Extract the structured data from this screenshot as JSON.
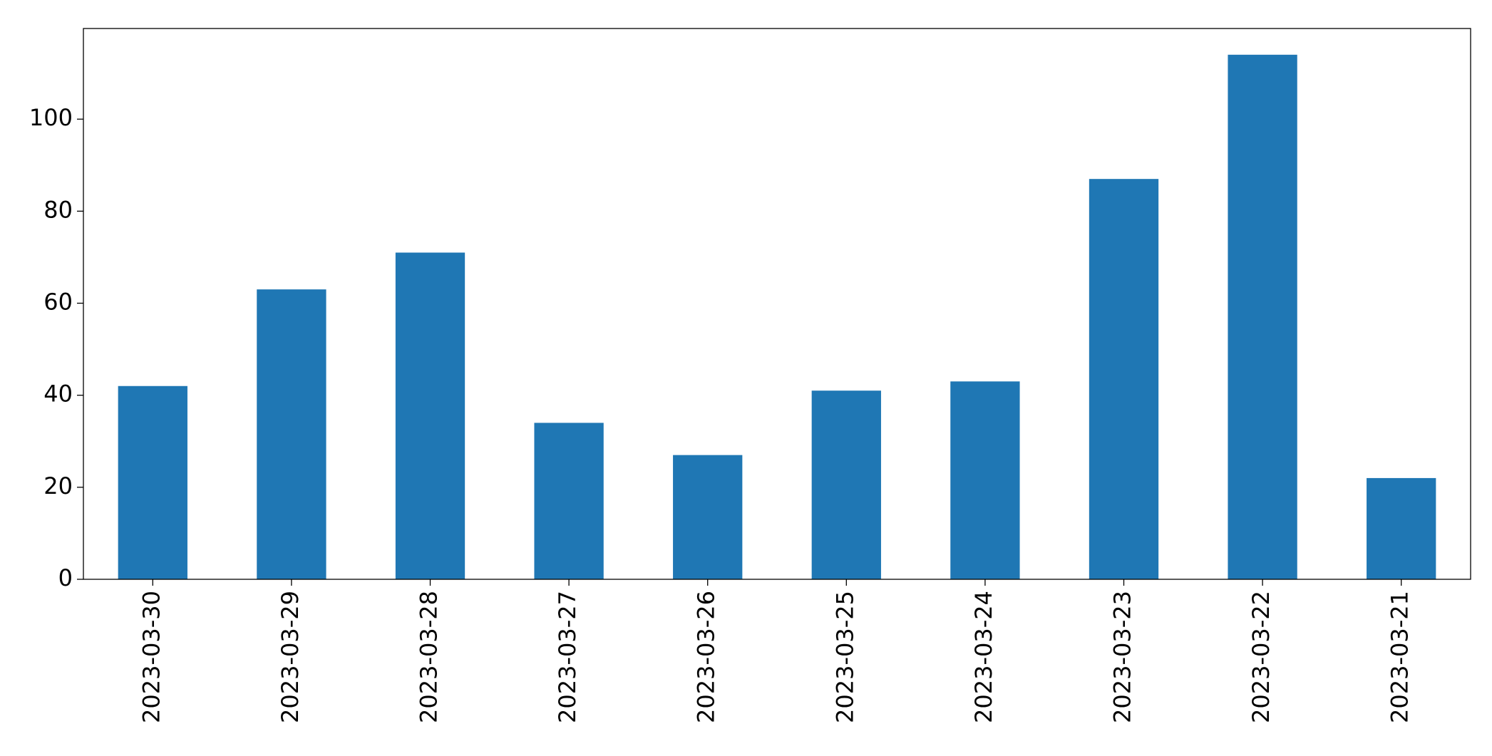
{
  "chart_data": {
    "type": "bar",
    "categories": [
      "2023-03-30",
      "2023-03-29",
      "2023-03-28",
      "2023-03-27",
      "2023-03-26",
      "2023-03-25",
      "2023-03-24",
      "2023-03-23",
      "2023-03-22",
      "2023-03-21"
    ],
    "values": [
      42,
      63,
      71,
      34,
      27,
      41,
      43,
      87,
      114,
      22
    ],
    "color": "#1f77b4",
    "ylim": [
      0,
      119.7
    ],
    "yticks": [
      0,
      20,
      40,
      60,
      80,
      100
    ],
    "grid": false
  }
}
